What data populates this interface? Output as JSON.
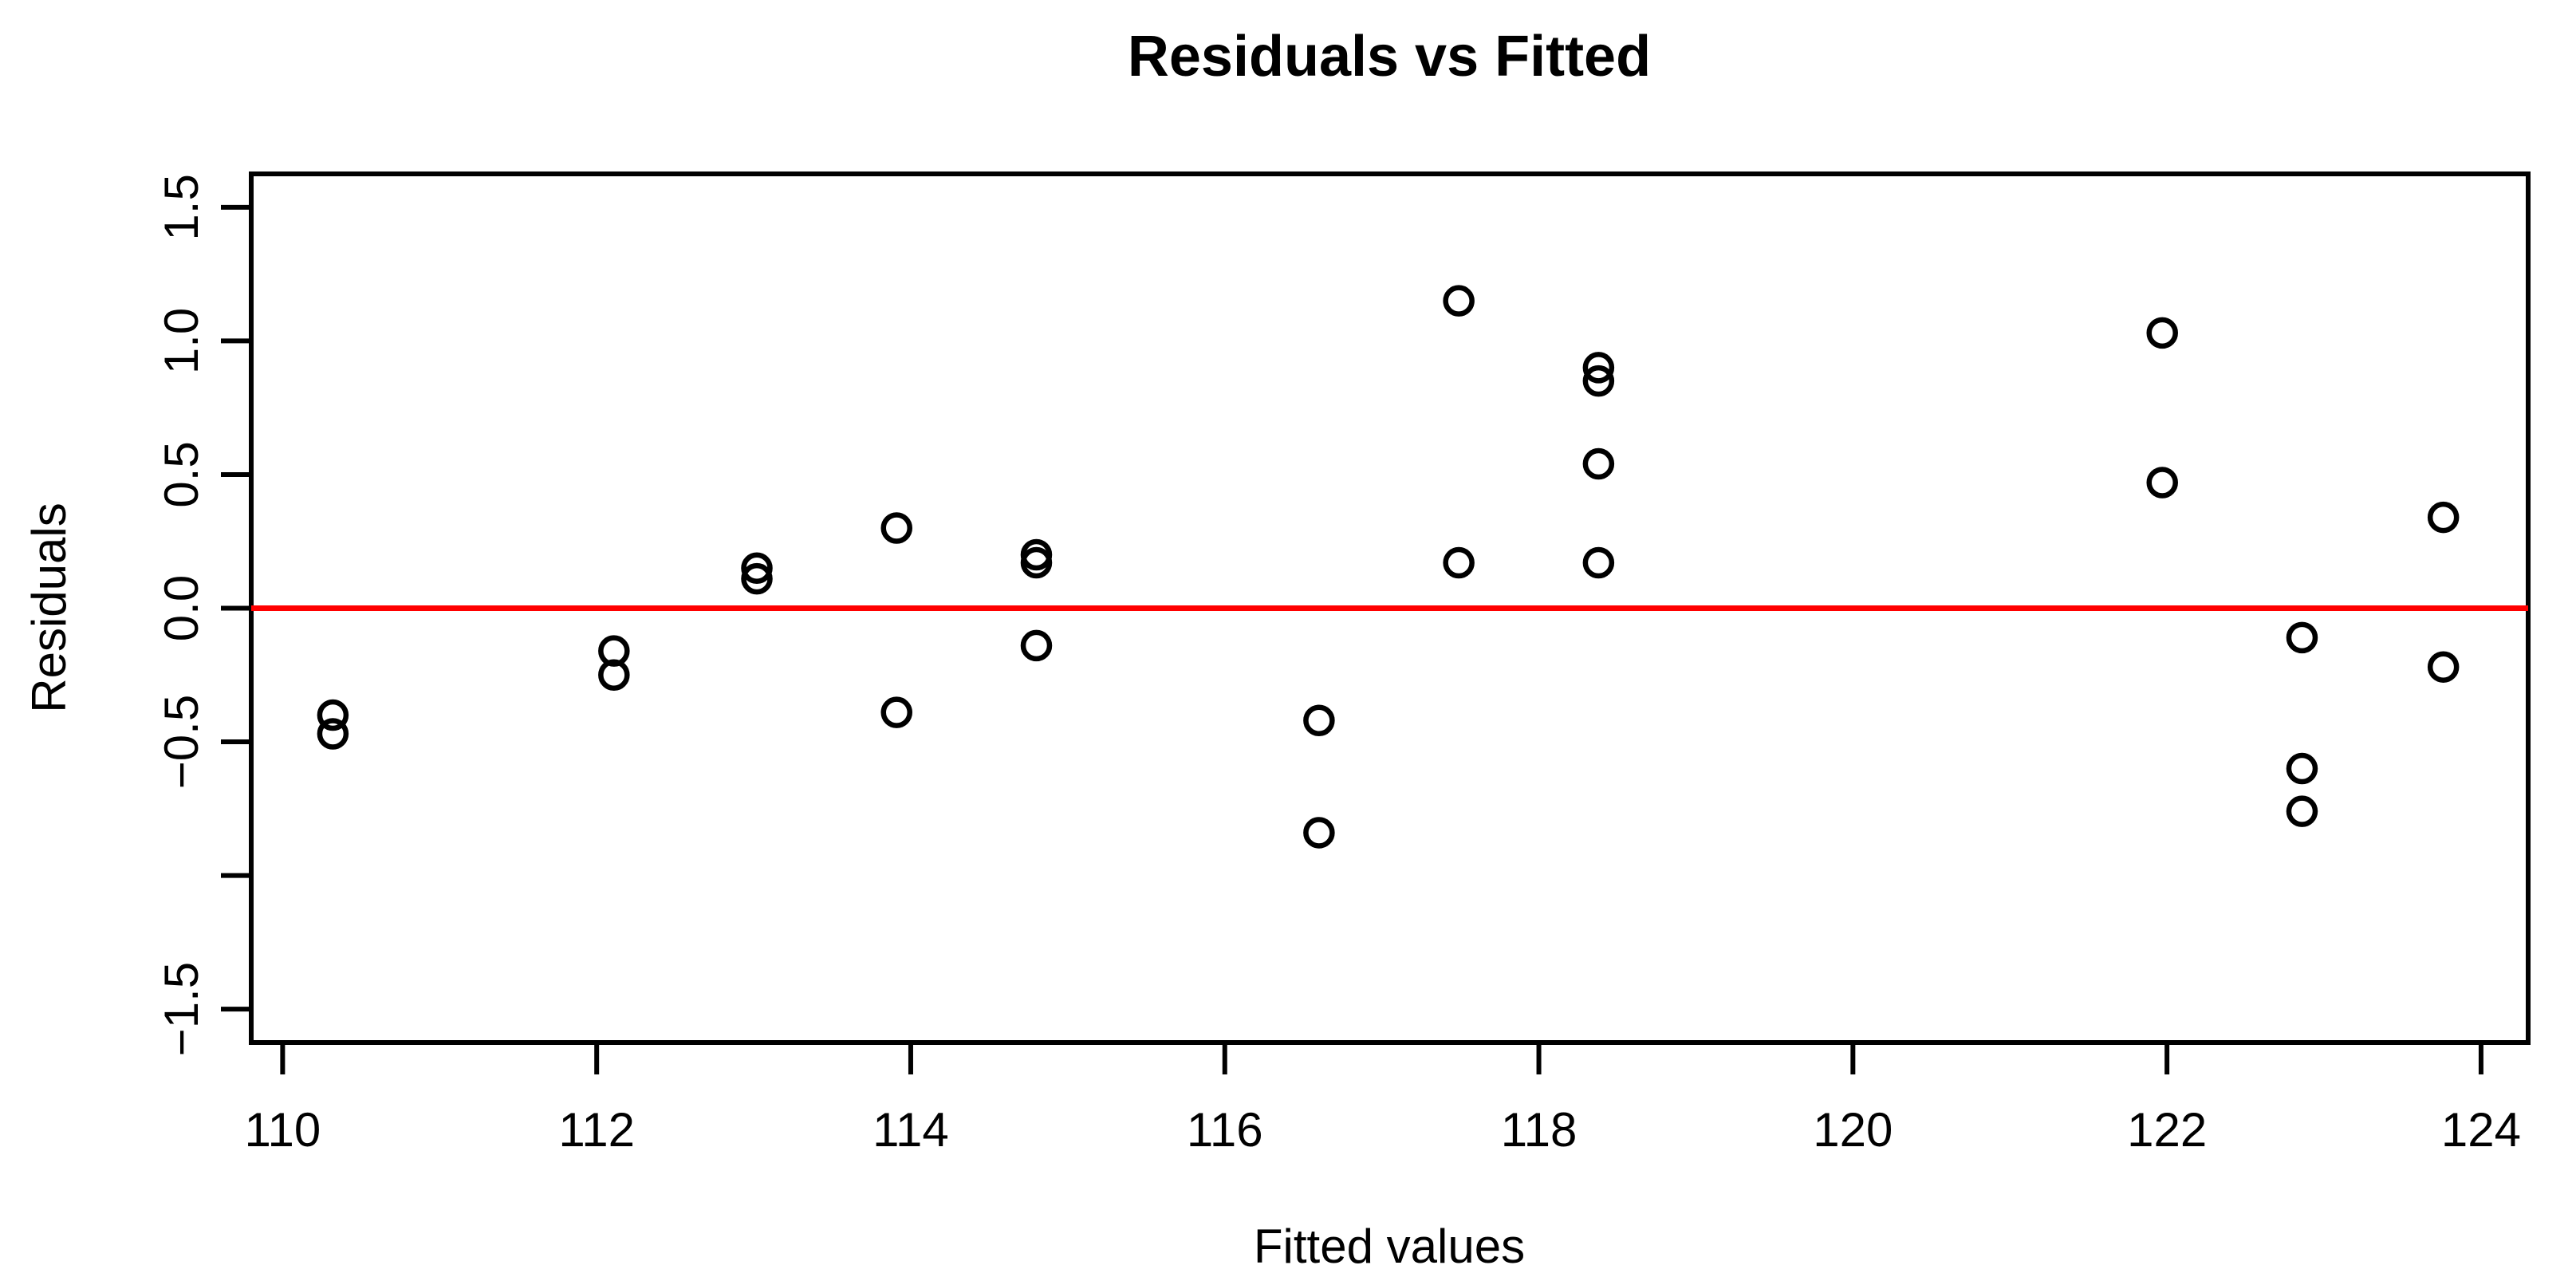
{
  "chart_data": {
    "type": "scatter",
    "title": "Residuals vs Fitted",
    "xlabel": "Fitted values",
    "ylabel": "Residuals",
    "xlim": [
      109.8,
      124.3
    ],
    "ylim": [
      -1.625,
      1.625
    ],
    "grid": false,
    "legend": null,
    "x_ticks": [
      {
        "v": 110,
        "label": "110"
      },
      {
        "v": 112,
        "label": "112"
      },
      {
        "v": 114,
        "label": "114"
      },
      {
        "v": 116,
        "label": "116"
      },
      {
        "v": 118,
        "label": "118"
      },
      {
        "v": 120,
        "label": "120"
      },
      {
        "v": 122,
        "label": "122"
      },
      {
        "v": 124,
        "label": "124"
      }
    ],
    "y_ticks": [
      {
        "v": 1.5,
        "label": "1.5"
      },
      {
        "v": 1.0,
        "label": "1.0"
      },
      {
        "v": 0.5,
        "label": "0.5"
      },
      {
        "v": 0.0,
        "label": "0.0"
      },
      {
        "v": -0.5,
        "label": "−0.5"
      },
      {
        "v": -1.0,
        "label": ""
      },
      {
        "v": -1.5,
        "label": "−1.5"
      }
    ],
    "points": [
      {
        "x": 110.32,
        "y": -0.4
      },
      {
        "x": 110.32,
        "y": -0.47
      },
      {
        "x": 112.11,
        "y": -0.16
      },
      {
        "x": 112.11,
        "y": -0.25
      },
      {
        "x": 113.02,
        "y": 0.15
      },
      {
        "x": 113.02,
        "y": 0.11
      },
      {
        "x": 113.91,
        "y": 0.3
      },
      {
        "x": 113.91,
        "y": -0.39
      },
      {
        "x": 114.8,
        "y": 0.2
      },
      {
        "x": 114.8,
        "y": 0.17
      },
      {
        "x": 114.8,
        "y": -0.14
      },
      {
        "x": 116.6,
        "y": -0.42
      },
      {
        "x": 116.6,
        "y": -0.84
      },
      {
        "x": 117.49,
        "y": 1.15
      },
      {
        "x": 117.49,
        "y": 0.17
      },
      {
        "x": 118.38,
        "y": 0.9
      },
      {
        "x": 118.38,
        "y": 0.85
      },
      {
        "x": 118.38,
        "y": 0.54
      },
      {
        "x": 118.38,
        "y": 0.17
      },
      {
        "x": 121.97,
        "y": 1.03
      },
      {
        "x": 121.97,
        "y": 0.47
      },
      {
        "x": 122.86,
        "y": -0.11
      },
      {
        "x": 122.86,
        "y": -0.6
      },
      {
        "x": 122.86,
        "y": -0.76
      },
      {
        "x": 123.76,
        "y": 0.34
      },
      {
        "x": 123.76,
        "y": -0.22
      }
    ],
    "reference_line": {
      "y": 0.0,
      "color": "#FF0000"
    },
    "point_color": "#000000",
    "axis_color": "#000000",
    "background_color": "#FFFFFF"
  }
}
